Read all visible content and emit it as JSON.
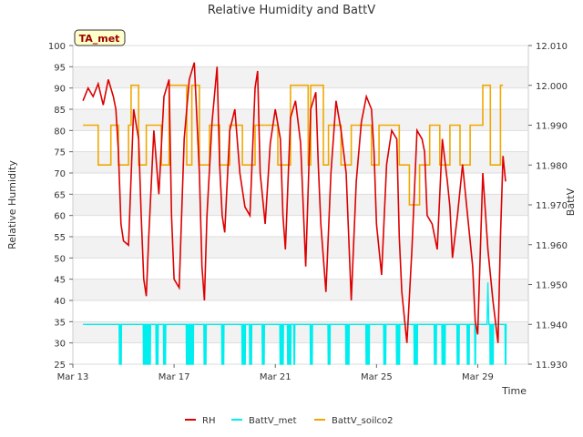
{
  "chart_data": {
    "type": "line",
    "title": "Relative Humidity and BattV",
    "xlabel": "Time",
    "ylabel": "Relative Humidity",
    "y2label": "BattV",
    "badge": "TA_met",
    "xlim": [
      0,
      18
    ],
    "ylim": [
      25,
      100
    ],
    "y2lim": [
      11.93,
      12.01
    ],
    "x_ticks": [
      {
        "day": 0,
        "label": "Mar 13"
      },
      {
        "day": 4,
        "label": "Mar 17"
      },
      {
        "day": 8,
        "label": "Mar 21"
      },
      {
        "day": 12,
        "label": "Mar 25"
      },
      {
        "day": 16,
        "label": "Mar 29"
      }
    ],
    "y_ticks": [
      "25",
      "30",
      "35",
      "40",
      "45",
      "50",
      "55",
      "60",
      "65",
      "70",
      "75",
      "80",
      "85",
      "90",
      "95",
      "100"
    ],
    "y2_ticks": [
      "11.930",
      "11.940",
      "11.950",
      "11.960",
      "11.970",
      "11.980",
      "11.990",
      "12.000",
      "12.010"
    ],
    "legend": [
      "RH",
      "BattV_met",
      "BattV_soilco2"
    ],
    "colors": {
      "RH": "#dd0000",
      "BattV_met": "#00eeee",
      "BattV_soilco2": "#f0a800"
    },
    "series": [
      {
        "name": "RH",
        "axis": "left",
        "x": [
          0.4,
          0.6,
          0.8,
          1.0,
          1.2,
          1.4,
          1.6,
          1.7,
          1.8,
          1.9,
          2.0,
          2.2,
          2.4,
          2.6,
          2.7,
          2.8,
          2.9,
          3.0,
          3.2,
          3.4,
          3.6,
          3.8,
          3.9,
          4.0,
          4.2,
          4.4,
          4.6,
          4.8,
          5.0,
          5.1,
          5.2,
          5.3,
          5.5,
          5.7,
          5.8,
          5.9,
          6.0,
          6.2,
          6.4,
          6.6,
          6.8,
          7.0,
          7.2,
          7.3,
          7.4,
          7.6,
          7.8,
          8.0,
          8.2,
          8.3,
          8.4,
          8.6,
          8.8,
          9.0,
          9.2,
          9.4,
          9.6,
          9.7,
          9.8,
          10.0,
          10.2,
          10.4,
          10.6,
          10.8,
          10.9,
          11.0,
          11.2,
          11.4,
          11.6,
          11.8,
          11.9,
          12.0,
          12.2,
          12.4,
          12.6,
          12.8,
          12.9,
          13.0,
          13.2,
          13.4,
          13.6,
          13.8,
          13.9,
          14.0,
          14.2,
          14.4,
          14.6,
          14.8,
          14.9,
          15.0,
          15.2,
          15.4,
          15.6,
          15.8,
          15.9,
          16.0,
          16.2,
          16.4,
          16.6,
          16.8,
          16.9,
          17.0,
          17.1
        ],
        "values": [
          87,
          90,
          88,
          91,
          86,
          92,
          88,
          85,
          75,
          58,
          54,
          53,
          85,
          78,
          60,
          45,
          41,
          55,
          80,
          65,
          88,
          92,
          60,
          45,
          43,
          78,
          92,
          96,
          70,
          48,
          40,
          60,
          82,
          95,
          72,
          60,
          56,
          80,
          85,
          70,
          62,
          60,
          90,
          94,
          70,
          58,
          77,
          85,
          78,
          60,
          52,
          83,
          87,
          77,
          48,
          85,
          89,
          72,
          58,
          42,
          70,
          87,
          80,
          70,
          55,
          40,
          68,
          82,
          88,
          85,
          75,
          58,
          46,
          72,
          80,
          78,
          55,
          42,
          30,
          52,
          80,
          78,
          75,
          60,
          58,
          52,
          78,
          68,
          62,
          50,
          60,
          72,
          60,
          48,
          35,
          32,
          70,
          52,
          40,
          30,
          55,
          74,
          68
        ]
      },
      {
        "name": "BattV_met",
        "axis": "right",
        "baseline": 11.94,
        "drops_low": 11.93,
        "drop_days": [
          1.85,
          1.9,
          2.8,
          2.85,
          2.9,
          2.95,
          3.0,
          3.05,
          3.3,
          3.35,
          3.6,
          3.65,
          4.5,
          4.55,
          4.6,
          4.65,
          4.7,
          4.75,
          5.2,
          5.25,
          5.9,
          5.95,
          6.7,
          6.75,
          6.8,
          7.0,
          7.05,
          7.5,
          7.55,
          8.2,
          8.25,
          8.3,
          8.5,
          8.55,
          8.6,
          8.75,
          9.4,
          9.45,
          10.1,
          10.15,
          10.8,
          10.85,
          10.9,
          11.6,
          11.65,
          11.7,
          12.3,
          12.35,
          12.8,
          12.85,
          12.9,
          13.5,
          13.55,
          13.6,
          14.3,
          14.35,
          14.6,
          14.65,
          14.7,
          15.2,
          15.25,
          15.6,
          15.65,
          15.9,
          16.5,
          16.55,
          16.6,
          17.1
        ],
        "spike": {
          "day": 16.4,
          "value": 11.9505
        }
      },
      {
        "name": "BattV_soilco2",
        "axis": "right",
        "x": [
          0.4,
          1.0,
          1.0,
          1.5,
          1.5,
          1.8,
          1.8,
          2.2,
          2.2,
          2.3,
          2.3,
          2.6,
          2.6,
          2.9,
          2.9,
          3.5,
          3.5,
          3.8,
          3.8,
          4.5,
          4.5,
          4.7,
          4.7,
          5.0,
          5.0,
          5.4,
          5.4,
          5.8,
          5.8,
          6.2,
          6.2,
          6.7,
          6.7,
          7.2,
          7.2,
          8.1,
          8.1,
          8.6,
          8.6,
          9.3,
          9.3,
          9.4,
          9.4,
          9.9,
          9.9,
          10.1,
          10.1,
          10.6,
          10.6,
          11.0,
          11.0,
          11.8,
          11.8,
          12.1,
          12.1,
          12.9,
          12.9,
          13.3,
          13.3,
          13.7,
          13.7,
          14.1,
          14.1,
          14.5,
          14.5,
          14.9,
          14.9,
          15.3,
          15.3,
          15.7,
          15.7,
          16.2,
          16.2,
          16.5,
          16.5,
          16.9,
          16.9,
          17.0
        ],
        "values": [
          11.99,
          11.99,
          11.98,
          11.98,
          11.99,
          11.99,
          11.98,
          11.98,
          11.99,
          11.99,
          12.0,
          12.0,
          11.98,
          11.98,
          11.99,
          11.99,
          11.98,
          11.98,
          12.0,
          12.0,
          11.98,
          11.98,
          12.0,
          12.0,
          11.98,
          11.98,
          11.99,
          11.99,
          11.98,
          11.98,
          11.99,
          11.99,
          11.98,
          11.98,
          11.99,
          11.99,
          11.98,
          11.98,
          12.0,
          12.0,
          11.98,
          11.98,
          12.0,
          12.0,
          11.98,
          11.98,
          11.99,
          11.99,
          11.98,
          11.98,
          11.99,
          11.99,
          11.98,
          11.98,
          11.99,
          11.99,
          11.98,
          11.98,
          11.97,
          11.97,
          11.98,
          11.98,
          11.99,
          11.99,
          11.98,
          11.98,
          11.99,
          11.99,
          11.98,
          11.98,
          11.99,
          11.99,
          12.0,
          12.0,
          11.98,
          11.98,
          12.0,
          12.0
        ]
      }
    ]
  }
}
